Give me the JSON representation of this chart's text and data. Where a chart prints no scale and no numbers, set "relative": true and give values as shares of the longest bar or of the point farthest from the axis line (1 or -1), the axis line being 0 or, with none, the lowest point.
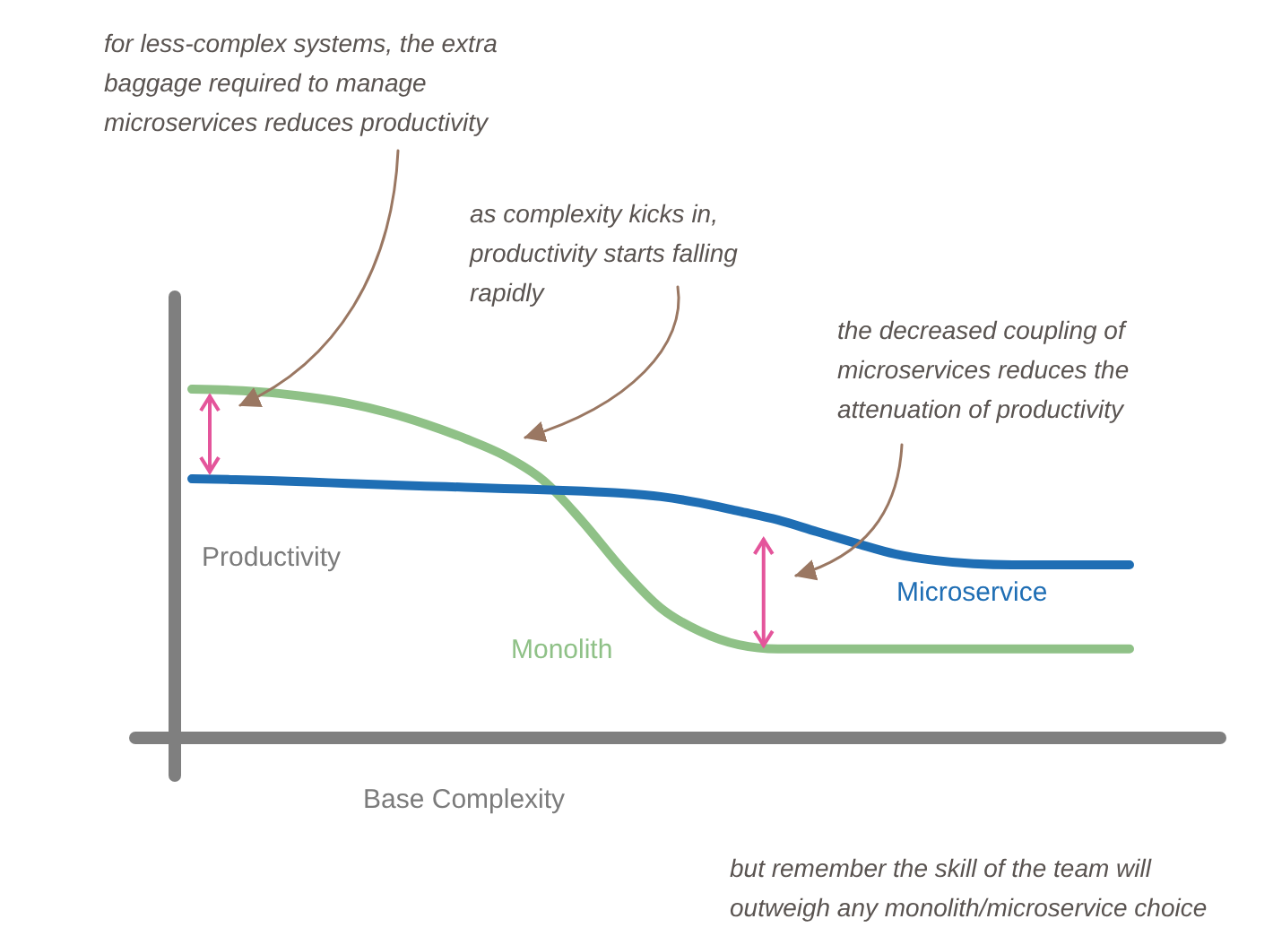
{
  "chart_data": {
    "type": "line",
    "relative": true,
    "xlabel": "Base Complexity",
    "ylabel": "Productivity",
    "categories": [
      null,
      null,
      null,
      null,
      null,
      null,
      null,
      null,
      null,
      null,
      null,
      null,
      null,
      null,
      null,
      null,
      null,
      null,
      null,
      null,
      null,
      null,
      null,
      null,
      null
    ],
    "series": [
      {
        "name": "Monolith",
        "color": "#8fc187",
        "values": [
          1,
          0.997,
          0.99,
          0.977,
          0.959,
          0.933,
          0.899,
          0.858,
          0.809,
          0.737,
          0.619,
          0.485,
          0.371,
          0.304,
          0.265,
          0.253,
          0.253,
          0.253,
          0.253,
          0.253,
          0.253,
          0.253,
          0.253,
          0.253,
          0.253
        ]
      },
      {
        "name": "Microservice",
        "color": "#1f6eb4",
        "values": [
          0.742,
          0.74,
          0.737,
          0.733,
          0.729,
          0.725,
          0.721,
          0.718,
          0.714,
          0.711,
          0.707,
          0.701,
          0.691,
          0.673,
          0.649,
          0.624,
          0.59,
          0.557,
          0.526,
          0.508,
          0.498,
          0.495,
          0.495,
          0.495,
          0.495
        ]
      }
    ],
    "annotations": [
      "for less-complex systems, the extra baggage required to manage microservices reduces productivity",
      "as complexity kicks in, productivity starts falling rapidly",
      "the decreased coupling of microservices reduces the attenuation of productivity",
      "but remember the skill of the team will outweigh any monolith/microservice choice"
    ]
  }
}
